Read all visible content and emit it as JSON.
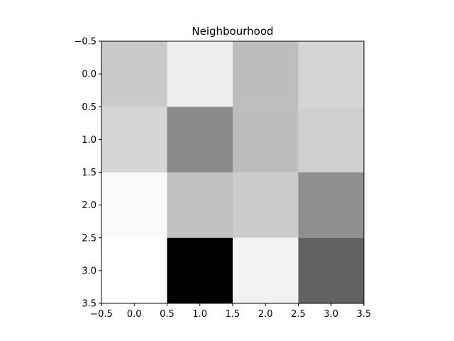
{
  "chart_data": {
    "type": "heatmap",
    "title": "Neighbourhood",
    "xlabel": "",
    "ylabel": "",
    "colormap": "gray",
    "xlim": [
      -0.5,
      3.5
    ],
    "ylim": [
      3.5,
      -0.5
    ],
    "x_ticks": [
      "−0.5",
      "0.0",
      "0.5",
      "1.0",
      "1.5",
      "2.0",
      "2.5",
      "3.0",
      "3.5"
    ],
    "y_ticks": [
      "−0.5",
      "0.0",
      "0.5",
      "1.0",
      "1.5",
      "2.0",
      "2.5",
      "3.0",
      "3.5"
    ],
    "x_tick_values": [
      -0.5,
      0.0,
      0.5,
      1.0,
      1.5,
      2.0,
      2.5,
      3.0,
      3.5
    ],
    "y_tick_values": [
      -0.5,
      0.0,
      0.5,
      1.0,
      1.5,
      2.0,
      2.5,
      3.0,
      3.5
    ],
    "values": [
      [
        0.79,
        0.93,
        0.74,
        0.84
      ],
      [
        0.84,
        0.54,
        0.74,
        0.81
      ],
      [
        0.98,
        0.76,
        0.8,
        0.56
      ],
      [
        1.0,
        0.0,
        0.95,
        0.38
      ]
    ]
  }
}
